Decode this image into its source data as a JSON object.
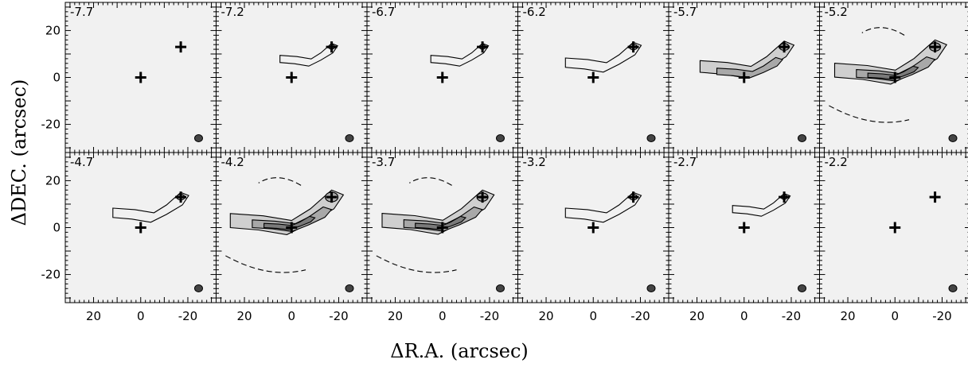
{
  "chart_data": {
    "type": "channel-map-grid",
    "xlabel": "ΔR.A. (arcsec)",
    "ylabel": "ΔDEC. (arcsec)",
    "xlim": [
      32,
      -32
    ],
    "ylim": [
      -32,
      32
    ],
    "xticks": [
      "20",
      "0",
      "-20"
    ],
    "yticks": [
      "20",
      "0",
      "-20"
    ],
    "panels": [
      {
        "label": "-7.7",
        "emission": 0
      },
      {
        "label": "-7.2",
        "emission": 1
      },
      {
        "label": "-6.7",
        "emission": 1
      },
      {
        "label": "-6.2",
        "emission": 2
      },
      {
        "label": "-5.7",
        "emission": 3
      },
      {
        "label": "-5.2",
        "emission": 4
      },
      {
        "label": "-4.7",
        "emission": 2
      },
      {
        "label": "-4.2",
        "emission": 5
      },
      {
        "label": "-3.7",
        "emission": 4
      },
      {
        "label": "-3.2",
        "emission": 2
      },
      {
        "label": "-2.7",
        "emission": 1
      },
      {
        "label": "-2.2",
        "emission": 0
      }
    ],
    "markers": [
      {
        "x": 0,
        "y": 0
      },
      {
        "x": -17,
        "y": 13
      }
    ]
  }
}
